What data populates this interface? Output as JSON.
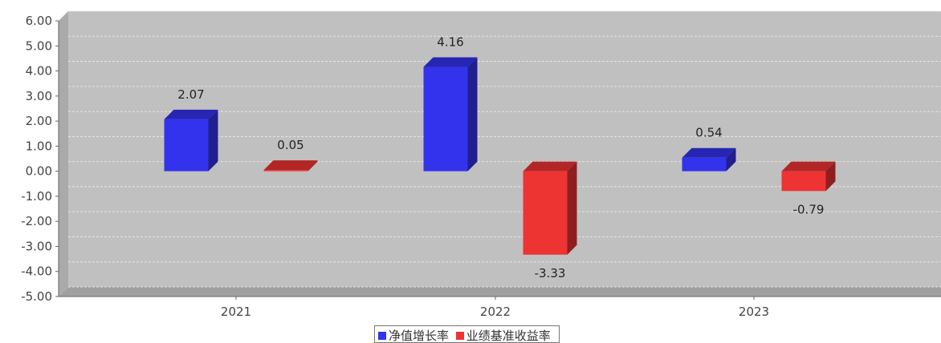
{
  "chart_data": {
    "type": "bar",
    "style": "3d",
    "categories": [
      "2021",
      "2022",
      "2023"
    ],
    "series": [
      {
        "name": "净值增长率",
        "color": "#3333ee",
        "values": [
          2.07,
          4.16,
          0.54
        ]
      },
      {
        "name": "业绩基准收益率",
        "color": "#ee3333",
        "values": [
          0.05,
          -3.33,
          -0.79
        ]
      }
    ],
    "ylim": [
      -5,
      6
    ],
    "yticks": [
      "6.00",
      "5.00",
      "4.00",
      "3.00",
      "2.00",
      "1.00",
      "0.00",
      "-1.00",
      "-2.00",
      "-3.00",
      "-4.00",
      "-5.00"
    ],
    "grid": true,
    "legend_position": "bottom-center",
    "plot_background": "#c0c0c0"
  }
}
